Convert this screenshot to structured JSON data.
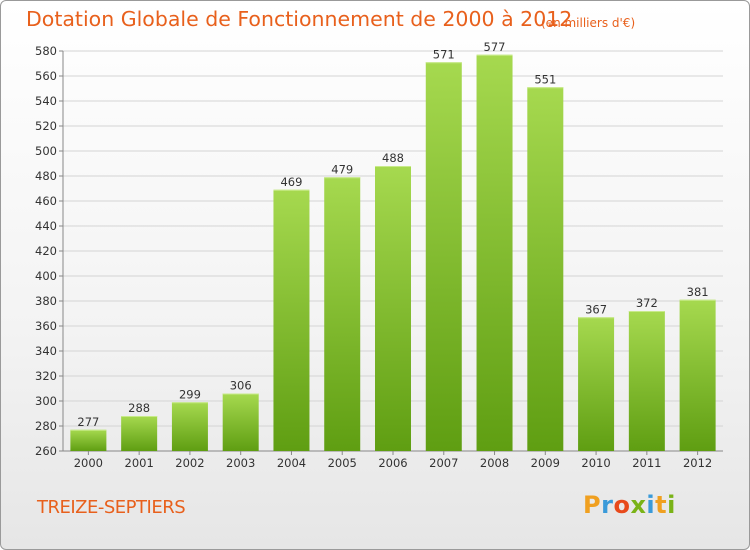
{
  "title": "Dotation Globale de Fonctionnement de 2000 à 2012",
  "subtitle": "(en milliers d'€)",
  "commune": "TREIZE-SEPTIERS",
  "logo": {
    "letters": [
      "P",
      "r",
      "o",
      "x",
      "i",
      "t",
      "i"
    ],
    "colors": [
      "#f0a020",
      "#3a9ad9",
      "#e84a1c",
      "#7ab317",
      "#3a9ad9",
      "#f0a020",
      "#7ab317"
    ]
  },
  "colors": {
    "bar": "#7cc22a",
    "bar_light": "#a6d94f",
    "text": "#e8601c"
  },
  "chart_data": {
    "type": "bar",
    "categories": [
      "2000",
      "2001",
      "2002",
      "2003",
      "2004",
      "2005",
      "2006",
      "2007",
      "2008",
      "2009",
      "2010",
      "2011",
      "2012"
    ],
    "values": [
      277,
      288,
      299,
      306,
      469,
      479,
      488,
      571,
      577,
      551,
      367,
      372,
      381
    ],
    "title": "Dotation Globale de Fonctionnement de 2000 à 2012",
    "xlabel": "",
    "ylabel": "",
    "ylim": [
      260,
      580
    ],
    "yticks": [
      260,
      280,
      300,
      320,
      340,
      360,
      380,
      400,
      420,
      440,
      460,
      480,
      500,
      520,
      540,
      560,
      580
    ],
    "grid": true,
    "data_labels": true
  }
}
